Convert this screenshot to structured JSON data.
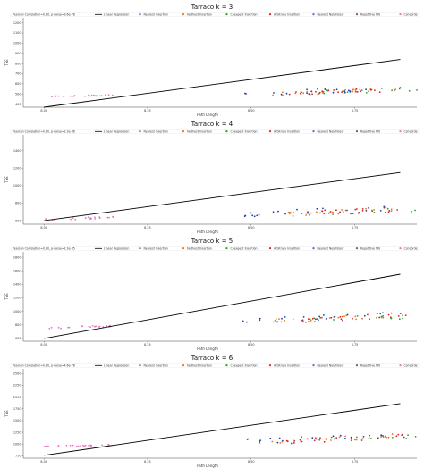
{
  "figure": {
    "panels": [
      {
        "title": "Tarraco k = 3",
        "legend_corr": "Pearson Correlation=0.80, p-value=3.6e-78"
      },
      {
        "title": "Tarraco k = 4",
        "legend_corr": "Pearson Correlation=0.80, p-value=2.3e-86"
      },
      {
        "title": "Tarraco k = 5",
        "legend_corr": "Pearson Correlation=0.80, p-value=2.3e-85"
      },
      {
        "title": "Tarraco k = 6",
        "legend_corr": "Pearson Correlation=0.80, p-value=4.6e-78"
      }
    ],
    "legend_labels": [
      "Linear Regression",
      "Nearest Insertion",
      "Farthest Insertion",
      "Cheapest Insertion",
      "Arbitrary Insertion",
      "Nearest Neighbour",
      "Repetitive NN",
      "Concorde"
    ]
  },
  "chart_data": [
    {
      "type": "scatter",
      "title": "Tarraco k = 3",
      "xlabel": "Path Length",
      "ylabel": "TSE",
      "xlim": [
        7.95,
        8.9
      ],
      "ylim": [
        370,
        1250
      ],
      "xticks": [
        "8.00",
        "8.25",
        "8.50",
        "8.75",
        "9.00",
        "9.25",
        "9.50",
        "9.75"
      ],
      "xtick_values": [
        8.0,
        8.25,
        8.5,
        8.75,
        9.0,
        9.25,
        9.5,
        9.75
      ],
      "ytick_values": [
        400,
        500,
        600,
        700,
        800,
        900,
        1000,
        1100,
        1200
      ],
      "regression": {
        "x": [
          8.0,
          8.86
        ],
        "y": [
          370,
          840
        ]
      },
      "clusters": [
        {
          "series": "Concorde",
          "x": [
            8.0,
            8.17
          ],
          "y": [
            465,
            495
          ],
          "n": 22
        },
        {
          "series": "Nearest Insertion",
          "x": [
            8.48,
            8.85
          ],
          "y": [
            475,
            580
          ],
          "n": 22
        },
        {
          "series": "Farthest Insertion",
          "x": [
            8.55,
            8.85
          ],
          "y": [
            475,
            565
          ],
          "n": 22
        },
        {
          "series": "Cheapest Insertion",
          "x": [
            8.62,
            9.08
          ],
          "y": [
            495,
            580
          ],
          "n": 20
        },
        {
          "series": "Arbitrary Insertion",
          "x": [
            8.58,
            8.88
          ],
          "y": [
            478,
            570
          ],
          "n": 22
        },
        {
          "series": "Nearest Neighbour",
          "x": [
            9.28,
            9.75
          ],
          "y": [
            650,
            1100
          ],
          "n": 26
        },
        {
          "series": "Repetitive NN",
          "x": [
            9.05,
            9.32
          ],
          "y": [
            600,
            850
          ],
          "n": 26
        }
      ]
    },
    {
      "type": "scatter",
      "title": "Tarraco k = 4",
      "xlabel": "Path Length",
      "ylabel": "TSE",
      "xlim": [
        7.95,
        8.9
      ],
      "ylim": [
        560,
        1580
      ],
      "xticks": [
        "8.00",
        "8.25",
        "8.50",
        "8.75",
        "9.00",
        "9.25",
        "9.50",
        "9.75"
      ],
      "xtick_values": [
        8.0,
        8.25,
        8.5,
        8.75,
        9.0,
        9.25,
        9.5,
        9.75
      ],
      "ytick_values": [
        600,
        800,
        1000,
        1200,
        1400
      ],
      "regression": {
        "x": [
          8.0,
          8.86
        ],
        "y": [
          600,
          1150
        ]
      },
      "clusters": [
        {
          "series": "Concorde",
          "x": [
            8.0,
            8.17
          ],
          "y": [
            600,
            650
          ],
          "n": 22
        },
        {
          "series": "Nearest Insertion",
          "x": [
            8.48,
            8.85
          ],
          "y": [
            640,
            780
          ],
          "n": 22
        },
        {
          "series": "Farthest Insertion",
          "x": [
            8.55,
            8.85
          ],
          "y": [
            640,
            760
          ],
          "n": 22
        },
        {
          "series": "Cheapest Insertion",
          "x": [
            8.62,
            9.08
          ],
          "y": [
            660,
            790
          ],
          "n": 20
        },
        {
          "series": "Arbitrary Insertion",
          "x": [
            8.58,
            8.88
          ],
          "y": [
            640,
            770
          ],
          "n": 22
        },
        {
          "series": "Nearest Neighbour",
          "x": [
            9.28,
            9.75
          ],
          "y": [
            900,
            1450
          ],
          "n": 26
        },
        {
          "series": "Repetitive NN",
          "x": [
            9.05,
            9.32
          ],
          "y": [
            800,
            1150
          ],
          "n": 26
        }
      ]
    },
    {
      "type": "scatter",
      "title": "Tarraco k = 5",
      "xlabel": "Path Length",
      "ylabel": "TSE",
      "xlim": [
        7.95,
        8.9
      ],
      "ylim": [
        560,
        1880
      ],
      "xticks": [
        "8.00",
        "8.25",
        "8.50",
        "8.75",
        "9.00",
        "9.25",
        "9.50",
        "9.75"
      ],
      "xtick_values": [
        8.0,
        8.25,
        8.5,
        8.75,
        9.0,
        9.25,
        9.5,
        9.75
      ],
      "ytick_values": [
        600,
        800,
        1000,
        1200,
        1400,
        1600,
        1800
      ],
      "regression": {
        "x": [
          8.0,
          8.86
        ],
        "y": [
          600,
          1550
        ]
      },
      "clusters": [
        {
          "series": "Concorde",
          "x": [
            8.0,
            8.17
          ],
          "y": [
            740,
            800
          ],
          "n": 22
        },
        {
          "series": "Nearest Insertion",
          "x": [
            8.48,
            8.85
          ],
          "y": [
            820,
            1000
          ],
          "n": 22
        },
        {
          "series": "Farthest Insertion",
          "x": [
            8.55,
            8.85
          ],
          "y": [
            820,
            980
          ],
          "n": 22
        },
        {
          "series": "Cheapest Insertion",
          "x": [
            8.62,
            9.08
          ],
          "y": [
            840,
            1000
          ],
          "n": 20
        },
        {
          "series": "Arbitrary Insertion",
          "x": [
            8.58,
            8.88
          ],
          "y": [
            820,
            990
          ],
          "n": 22
        },
        {
          "series": "Nearest Neighbour",
          "x": [
            9.28,
            9.75
          ],
          "y": [
            1150,
            1750
          ],
          "n": 26
        },
        {
          "series": "Repetitive NN",
          "x": [
            9.05,
            9.32
          ],
          "y": [
            1000,
            1450
          ],
          "n": 26
        }
      ]
    },
    {
      "type": "scatter",
      "title": "Tarraco k = 6",
      "xlabel": "Path Length",
      "ylabel": "TSE",
      "xlim": [
        7.95,
        8.9
      ],
      "ylim": [
        700,
        2600
      ],
      "xticks": [
        "8.00",
        "8.25",
        "8.50",
        "8.75",
        "9.00",
        "9.25",
        "9.50",
        "9.75"
      ],
      "xtick_values": [
        8.0,
        8.25,
        8.5,
        8.75,
        9.0,
        9.25,
        9.5,
        9.75
      ],
      "ytick_values": [
        750,
        1000,
        1250,
        1500,
        1750,
        2000,
        2250,
        2500
      ],
      "regression": {
        "x": [
          8.0,
          8.86
        ],
        "y": [
          760,
          1860
        ]
      },
      "clusters": [
        {
          "series": "Concorde",
          "x": [
            8.0,
            8.17
          ],
          "y": [
            930,
            1000
          ],
          "n": 22
        },
        {
          "series": "Nearest Insertion",
          "x": [
            8.48,
            8.85
          ],
          "y": [
            1000,
            1250
          ],
          "n": 22
        },
        {
          "series": "Farthest Insertion",
          "x": [
            8.55,
            8.85
          ],
          "y": [
            1000,
            1220
          ],
          "n": 22
        },
        {
          "series": "Cheapest Insertion",
          "x": [
            8.62,
            9.08
          ],
          "y": [
            1050,
            1250
          ],
          "n": 20
        },
        {
          "series": "Arbitrary Insertion",
          "x": [
            8.58,
            8.88
          ],
          "y": [
            1000,
            1230
          ],
          "n": 22
        },
        {
          "series": "Nearest Neighbour",
          "x": [
            9.28,
            9.75
          ],
          "y": [
            1450,
            2350
          ],
          "n": 26
        },
        {
          "series": "Repetitive NN",
          "x": [
            9.05,
            9.32
          ],
          "y": [
            1250,
            1900
          ],
          "n": 26
        }
      ]
    }
  ],
  "colors": {
    "Linear Regression": "#000000",
    "Nearest Insertion": "#1f3fa8",
    "Farthest Insertion": "#e8771c",
    "Cheapest Insertion": "#2ca02c",
    "Arbitrary Insertion": "#d62728",
    "Nearest Neighbour": "#6a5acd",
    "Repetitive NN": "#8c564b",
    "Concorde": "#e377c2"
  }
}
